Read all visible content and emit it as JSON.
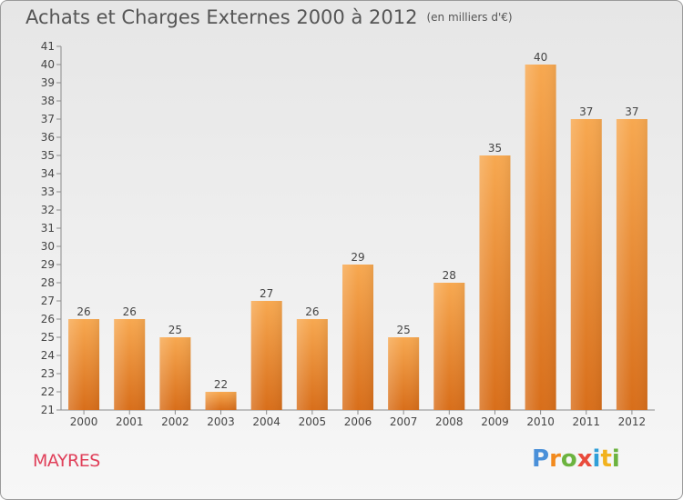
{
  "header": {
    "title": "Achats et Charges Externes 2000 à 2012",
    "units": "(en milliers d'€)"
  },
  "footer": {
    "commune": "MAYRES",
    "brand": "Proxiti"
  },
  "colors": {
    "bar_light": "#f7a850",
    "bar_dark": "#d86e1a",
    "commune": "#e0405a",
    "text": "#555555"
  },
  "chart_data": {
    "type": "bar",
    "categories": [
      "2000",
      "2001",
      "2002",
      "2003",
      "2004",
      "2005",
      "2006",
      "2007",
      "2008",
      "2009",
      "2010",
      "2011",
      "2012"
    ],
    "values": [
      26,
      26,
      25,
      22,
      27,
      26,
      29,
      25,
      28,
      35,
      40,
      37,
      37
    ],
    "ylim": [
      21,
      41
    ],
    "yticks": [
      21,
      22,
      23,
      24,
      25,
      26,
      27,
      28,
      29,
      30,
      31,
      32,
      33,
      34,
      35,
      36,
      37,
      38,
      39,
      40,
      41
    ],
    "grid": false,
    "title": "Achats et Charges Externes 2000 à 2012",
    "xlabel": "",
    "ylabel": ""
  }
}
